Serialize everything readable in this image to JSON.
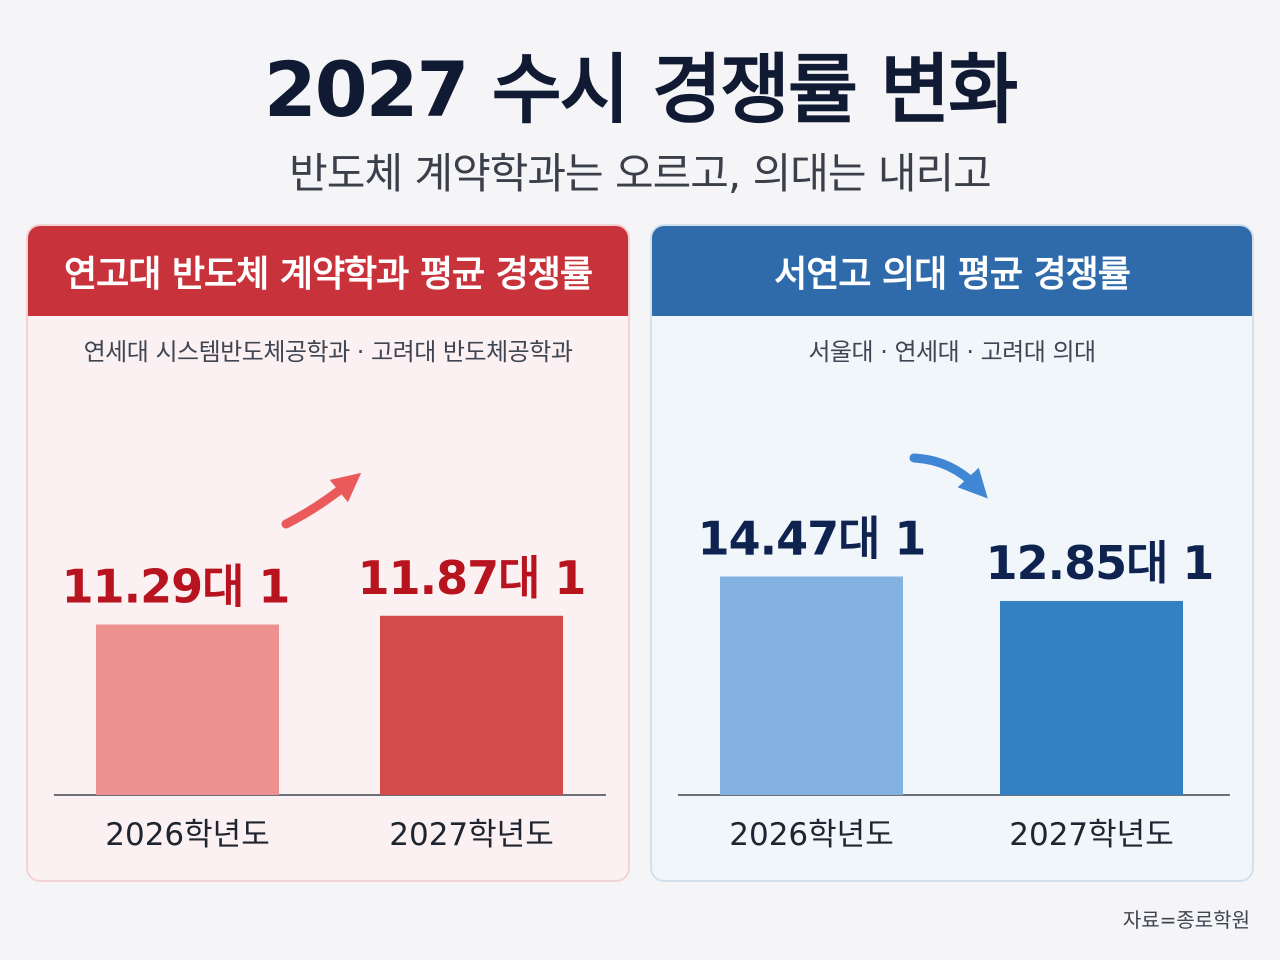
{
  "title": "2027 수시 경쟁률 변화",
  "subtitle": "반도체 계약학과는 오르고, 의대는 내리고",
  "source": "자료=종로학원",
  "colors": {
    "red_header": "#c8333b",
    "blue_header": "#2f6aaa",
    "red_bar_light": "#ec9090",
    "red_bar_dark": "#d44a4d",
    "blue_bar_light": "#84b2e0",
    "blue_bar_dark": "#3380c2",
    "red_label": "#b8141f",
    "blue_label": "#0f2350"
  },
  "chart_data": [
    {
      "type": "bar",
      "title": "연고대 반도체 계약학과 평균 경쟁률",
      "subtitle": "연세대 시스템반도체공학과 · 고려대 반도체공학과",
      "categories": [
        "2026학년도",
        "2027학년도"
      ],
      "values": [
        11.29,
        11.87
      ],
      "value_labels": [
        "11.29대 1",
        "11.87대 1"
      ],
      "trend": "up"
    },
    {
      "type": "bar",
      "title": "서연고 의대 평균 경쟁률",
      "subtitle": "서울대 · 연세대 · 고려대 의대",
      "categories": [
        "2026학년도",
        "2027학년도"
      ],
      "values": [
        14.47,
        12.85
      ],
      "value_labels": [
        "14.47대 1",
        "12.85대 1"
      ],
      "trend": "down"
    }
  ]
}
